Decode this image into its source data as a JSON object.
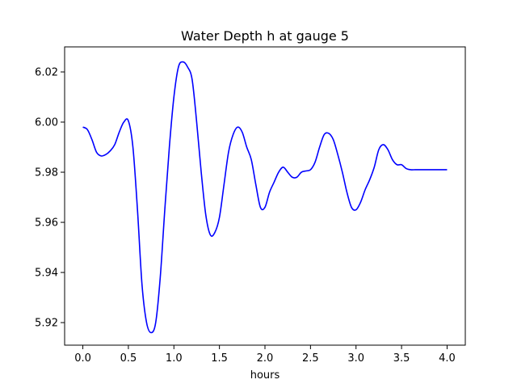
{
  "chart_data": {
    "type": "line",
    "title": "Water Depth h at gauge 5",
    "xlabel": "hours",
    "ylabel": "",
    "xlim": [
      -0.2,
      4.2
    ],
    "ylim": [
      5.911,
      6.03
    ],
    "xticks": [
      "0.0",
      "0.5",
      "1.0",
      "1.5",
      "2.0",
      "2.5",
      "3.0",
      "3.5",
      "4.0"
    ],
    "yticks": [
      "5.92",
      "5.94",
      "5.96",
      "5.98",
      "6.00",
      "6.02"
    ],
    "grid": false,
    "series": [
      {
        "color": "#0000ff",
        "x": [
          0.0,
          0.05,
          0.1,
          0.15,
          0.2,
          0.25,
          0.3,
          0.35,
          0.4,
          0.45,
          0.5,
          0.55,
          0.6,
          0.65,
          0.7,
          0.75,
          0.8,
          0.85,
          0.9,
          0.95,
          1.0,
          1.05,
          1.1,
          1.15,
          1.2,
          1.25,
          1.3,
          1.35,
          1.4,
          1.45,
          1.5,
          1.55,
          1.6,
          1.65,
          1.7,
          1.75,
          1.8,
          1.85,
          1.9,
          1.95,
          2.0,
          2.05,
          2.1,
          2.15,
          2.2,
          2.25,
          2.3,
          2.35,
          2.4,
          2.45,
          2.5,
          2.55,
          2.6,
          2.65,
          2.7,
          2.75,
          2.8,
          2.85,
          2.9,
          2.95,
          3.0,
          3.05,
          3.1,
          3.15,
          3.2,
          3.25,
          3.3,
          3.35,
          3.4,
          3.45,
          3.5,
          3.55,
          3.6,
          3.65,
          3.7,
          3.75,
          3.8,
          3.85,
          3.9,
          3.95,
          4.0
        ],
        "y": [
          5.998,
          5.997,
          5.993,
          5.988,
          5.9865,
          5.987,
          5.9885,
          5.991,
          5.996,
          6.0,
          6.0005,
          5.99,
          5.965,
          5.935,
          5.92,
          5.916,
          5.92,
          5.938,
          5.965,
          5.99,
          6.01,
          6.022,
          6.024,
          6.022,
          6.017,
          6.0,
          5.98,
          5.963,
          5.955,
          5.956,
          5.962,
          5.975,
          5.988,
          5.995,
          5.998,
          5.996,
          5.99,
          5.985,
          5.975,
          5.966,
          5.966,
          5.972,
          5.976,
          5.98,
          5.982,
          5.98,
          5.978,
          5.978,
          5.98,
          5.9805,
          5.981,
          5.984,
          5.99,
          5.995,
          5.9955,
          5.993,
          5.987,
          5.98,
          5.972,
          5.966,
          5.965,
          5.968,
          5.973,
          5.977,
          5.982,
          5.989,
          5.991,
          5.989,
          5.985,
          5.983,
          5.983,
          5.9815,
          5.981,
          5.981,
          5.981,
          5.981,
          5.981,
          5.981,
          5.981,
          5.981,
          5.981
        ]
      }
    ]
  }
}
